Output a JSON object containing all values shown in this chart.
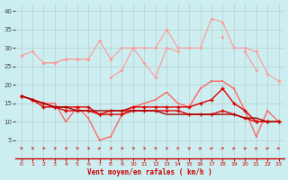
{
  "x": [
    0,
    1,
    2,
    3,
    4,
    5,
    6,
    7,
    8,
    9,
    10,
    11,
    12,
    13,
    14,
    15,
    16,
    17,
    18,
    19,
    20,
    21,
    22,
    23
  ],
  "line_gust_high": [
    28,
    29,
    26,
    26,
    27,
    27,
    27,
    32,
    27,
    30,
    30,
    30,
    30,
    35,
    30,
    30,
    30,
    38,
    37,
    30,
    30,
    29,
    23,
    21
  ],
  "line_gust_low": [
    28,
    null,
    26,
    26,
    27,
    27,
    27,
    null,
    22,
    24,
    30,
    26,
    22,
    30,
    29,
    null,
    null,
    null,
    33,
    null,
    29,
    24,
    null,
    21
  ],
  "line_avg_high": [
    17,
    16,
    15,
    15,
    10,
    14,
    11,
    5,
    6,
    12,
    14,
    15,
    16,
    18,
    15,
    14,
    19,
    21,
    21,
    19,
    13,
    6,
    13,
    10
  ],
  "line_avg_mid": [
    17,
    16,
    15,
    14,
    14,
    14,
    14,
    12,
    13,
    13,
    14,
    14,
    14,
    14,
    14,
    14,
    15,
    16,
    19,
    15,
    13,
    10,
    10,
    10
  ],
  "line_avg_low": [
    17,
    16,
    14,
    14,
    13,
    13,
    13,
    12,
    12,
    12,
    13,
    13,
    13,
    13,
    13,
    12,
    12,
    12,
    13,
    12,
    11,
    10,
    10,
    10
  ],
  "line_trend": [
    17,
    16,
    15,
    14,
    14,
    13,
    13,
    13,
    13,
    13,
    13,
    13,
    13,
    12,
    12,
    12,
    12,
    12,
    12,
    12,
    11,
    11,
    10,
    10
  ],
  "bg_color": "#cceef0",
  "grid_color": "#aaaaaa",
  "color_light": "#ff9999",
  "color_mid": "#ff6666",
  "color_dark": "#dd0000",
  "color_darkest": "#aa0000",
  "xlabel": "Vent moyen/en rafales ( km/h )",
  "xlim": [
    -0.5,
    23.5
  ],
  "ylim": [
    0,
    42
  ],
  "yticks": [
    5,
    10,
    15,
    20,
    25,
    30,
    35,
    40
  ],
  "xticks": [
    0,
    1,
    2,
    3,
    4,
    5,
    6,
    7,
    8,
    9,
    10,
    11,
    12,
    13,
    14,
    15,
    16,
    17,
    18,
    19,
    20,
    21,
    22,
    23
  ],
  "arrow_angles_deg": [
    0,
    0,
    0,
    0,
    0,
    0,
    0,
    45,
    0,
    0,
    0,
    15,
    15,
    15,
    30,
    30,
    45,
    45,
    45,
    45,
    45,
    45,
    45,
    45
  ]
}
